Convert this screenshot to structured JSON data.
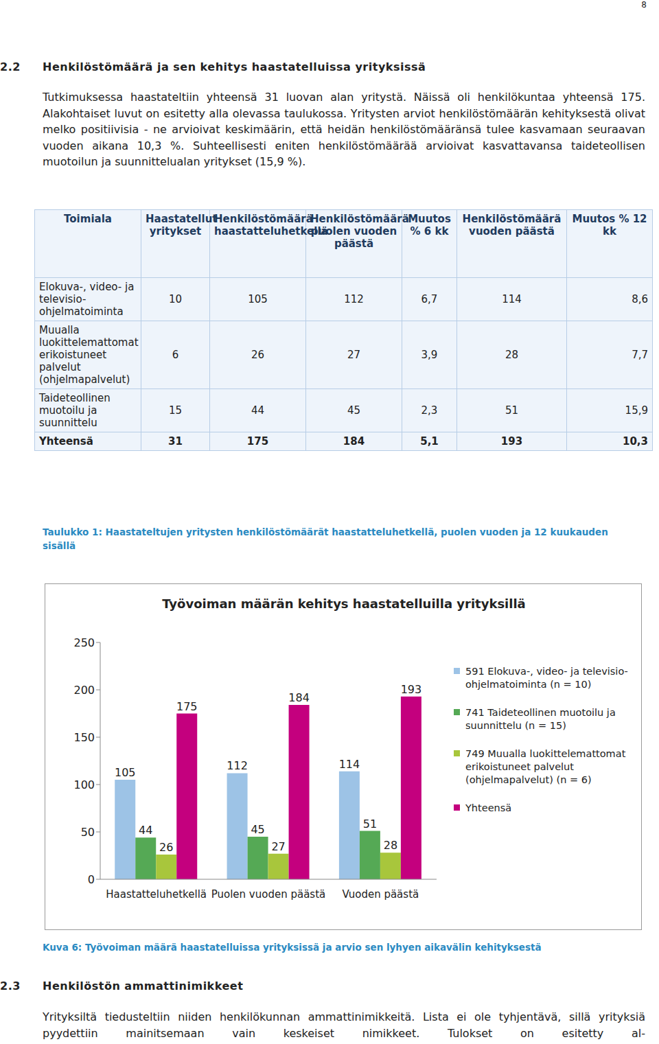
{
  "page_number": "8",
  "heading": {
    "number": "2.2",
    "title": "Henkilöstömäärä ja sen kehitys haastatelluissa yrityksissä"
  },
  "paragraph": "Tutkimuksessa haastateltiin yhteensä 31 luovan alan yritystä. Näissä oli henkilökuntaa yhteensä 175. Alakohtaiset luvut on esitetty alla olevassa taulukossa. Yritysten arviot henkilöstömäärän kehityksestä olivat melko positiivisia - ne arvioivat keskimäärin, että heidän henkilöstömääränsä tulee kasvamaan seuraavan vuoden aikana 10,3 %. Suhteellisesti eniten henkilöstömäärää arvioivat kasvattavansa taideteollisen muotoilun ja suunnittelualan yritykset (15,9 %).",
  "table": {
    "header": [
      "Toimiala",
      "Haastatellut yritykset",
      "Henkilöstömäärä haastatteluhetkellä",
      "Henkilöstömäärä puolen vuoden päästä",
      "Muutos % 6 kk",
      "Henkilöstömäärä vuoden päästä",
      "Muutos % 12 kk"
    ],
    "rows": [
      [
        "Elokuva-, video- ja televisio-ohjelmatoiminta",
        "10",
        "105",
        "112",
        "6,7",
        "114",
        "8,6"
      ],
      [
        "Muualla luokittelemattomat erikoistuneet palvelut (ohjelmapalvelut)",
        "6",
        "26",
        "27",
        "3,9",
        "28",
        "7,7"
      ],
      [
        "Taideteollinen muotoilu ja suunnittelu",
        "15",
        "44",
        "45",
        "2,3",
        "51",
        "15,9"
      ],
      [
        "Yhteensä",
        "31",
        "175",
        "184",
        "5,1",
        "193",
        "10,3"
      ]
    ]
  },
  "table_caption": "Taulukko 1: Haastateltujen yritysten henkilöstömäärät haastatteluhetkellä, puolen vuoden ja 12 kuukauden sisällä",
  "chart_data": {
    "type": "bar",
    "title": "Työvoiman määrän kehitys haastatelluilla yrityksillä",
    "categories": [
      "Haastatteluhetkellä",
      "Puolen vuoden päästä",
      "Vuoden päästä"
    ],
    "series": [
      {
        "name": "591 Elokuva-, video- ja televisio-ohjelmatoiminta (n = 10)",
        "color": "#9dc3e6",
        "values": [
          105,
          112,
          114
        ]
      },
      {
        "name": "741 Taideteollinen muotoilu ja suunnittelu (n = 15)",
        "color": "#55a955",
        "values": [
          44,
          45,
          51
        ]
      },
      {
        "name": "749 Muualla luokittelemattomat erikoistuneet palvelut (ohjelmapalvelut) (n = 6)",
        "color": "#a8c63c",
        "values": [
          26,
          27,
          28
        ]
      },
      {
        "name": "Yhteensä",
        "color": "#c4007e",
        "values": [
          175,
          184,
          193
        ]
      }
    ],
    "ylim": [
      0,
      250
    ],
    "yticks": [
      0,
      50,
      100,
      150,
      200,
      250
    ],
    "grid": false,
    "legend": "right",
    "data_labels": true
  },
  "chart_caption": "Kuva 6: Työvoiman määrä haastatelluissa yrityksissä ja arvio sen lyhyen aikavälin kehityksestä",
  "heading2": {
    "number": "2.3",
    "title": "Henkilöstön ammattinimikkeet"
  },
  "paragraph2": "Yrityksiltä tiedusteltiin niiden henkilökunnan ammattinimikkeitä. Lista ei ole tyhjentävä, sillä yrityksiä pyydettiin mainitsemaan vain keskeiset nimikkeet. Tulokset on esitetty al-"
}
